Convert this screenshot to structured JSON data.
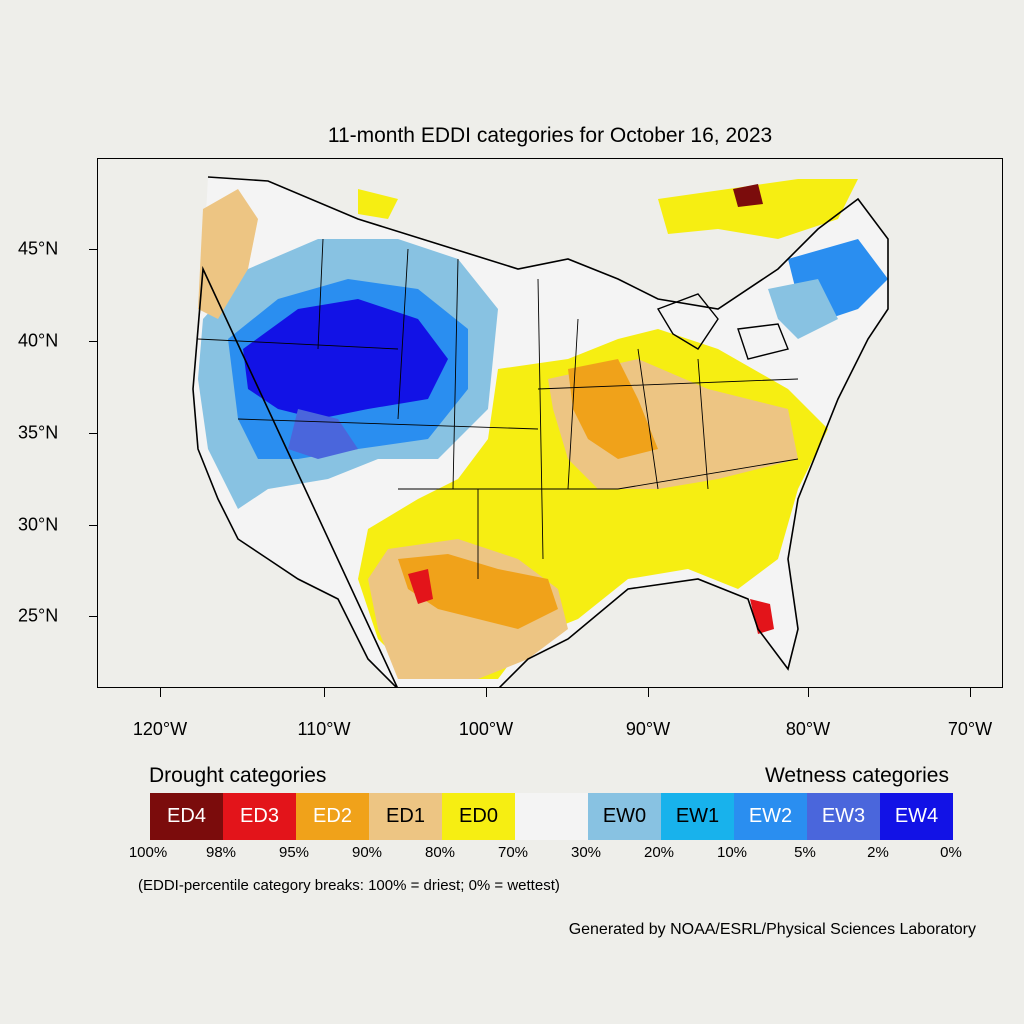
{
  "title": "11-month EDDI categories for October 16, 2023",
  "map": {
    "lat_labels": [
      "45°N",
      "40°N",
      "35°N",
      "30°N",
      "25°N"
    ],
    "lon_labels": [
      "120°W",
      "110°W",
      "100°W",
      "90°W",
      "80°W",
      "70°W"
    ],
    "fill_colors": {
      "ED4": "#7b0c0c",
      "ED3": "#e3141a",
      "ED2": "#f0a21a",
      "ED1": "#edc583",
      "ED0": "#f6ee12",
      "NONE": "#f4f4f4",
      "EW0": "#88c2e2",
      "EW1": "#18b2ec",
      "EW2": "#2a8ef0",
      "EW3": "#4a66dc",
      "EW4": "#1212e6"
    }
  },
  "legend": {
    "drought_heading": "Drought categories",
    "wetness_heading": "Wetness categories",
    "categories": [
      {
        "label": "ED4",
        "color": "#7b0c0c",
        "text_color": "#ffffff"
      },
      {
        "label": "ED3",
        "color": "#e3141a",
        "text_color": "#ffffff"
      },
      {
        "label": "ED2",
        "color": "#f0a21a",
        "text_color": "#ffffff"
      },
      {
        "label": "ED1",
        "color": "#edc583",
        "text_color": "#000000"
      },
      {
        "label": "ED0",
        "color": "#f6ee12",
        "text_color": "#000000"
      },
      {
        "label": "",
        "color": "#f4f4f4",
        "text_color": "#000000"
      },
      {
        "label": "EW0",
        "color": "#88c2e2",
        "text_color": "#000000"
      },
      {
        "label": "EW1",
        "color": "#18b2ec",
        "text_color": "#000000"
      },
      {
        "label": "EW2",
        "color": "#2a8ef0",
        "text_color": "#ffffff"
      },
      {
        "label": "EW3",
        "color": "#4a66dc",
        "text_color": "#ffffff"
      },
      {
        "label": "EW4",
        "color": "#1212e6",
        "text_color": "#ffffff"
      }
    ],
    "breaks": [
      "100%",
      "98%",
      "95%",
      "90%",
      "80%",
      "70%",
      "30%",
      "20%",
      "10%",
      "5%",
      "2%",
      "0%"
    ]
  },
  "note": "(EDDI-percentile category breaks: 100% = driest; 0% = wettest)",
  "credit": "Generated by NOAA/ESRL/Physical Sciences Laboratory"
}
